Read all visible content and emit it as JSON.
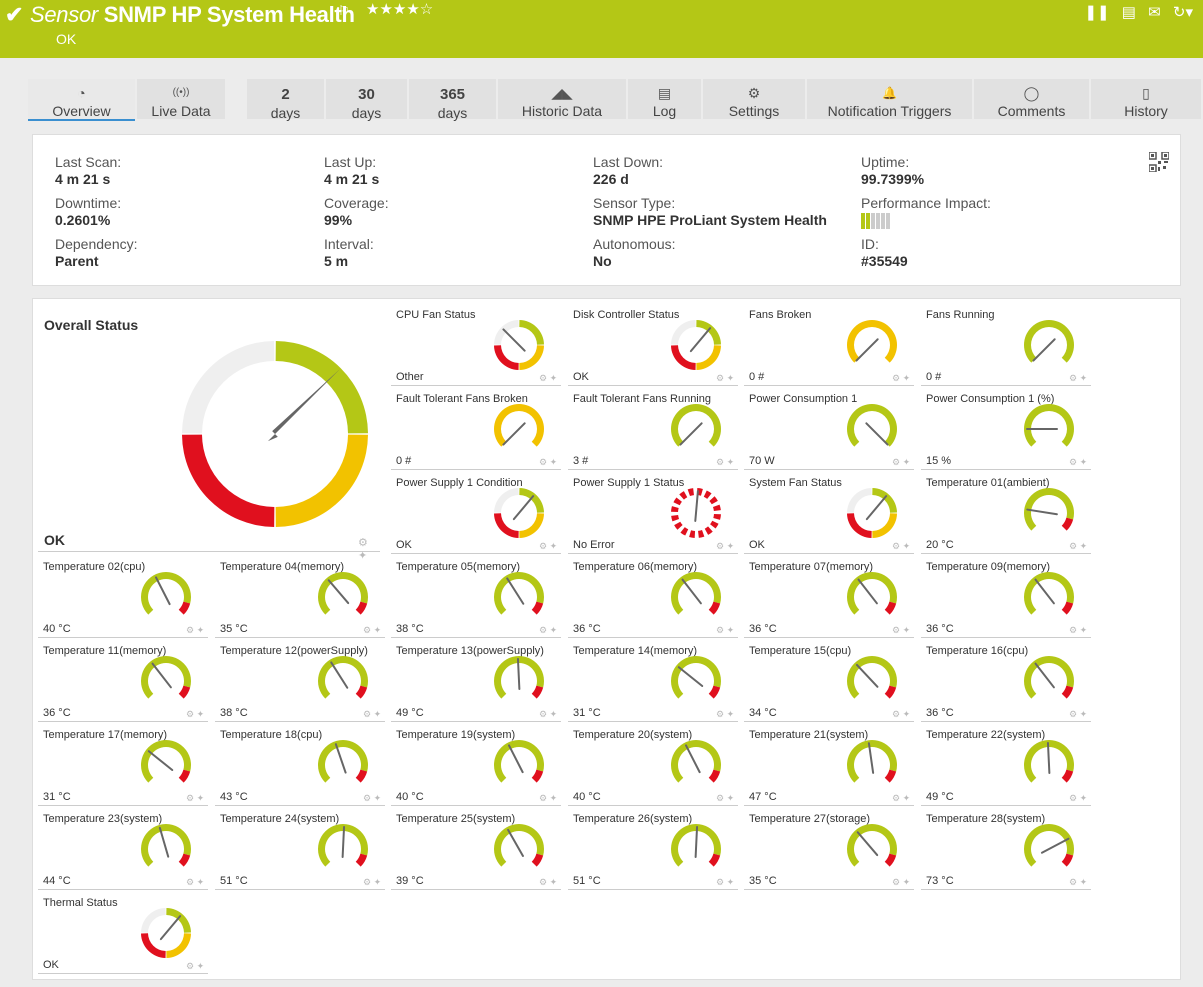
{
  "header": {
    "title_italic": "Sensor",
    "title_bold": "SNMP HP System Health",
    "status": "OK",
    "stars": "★★★★☆",
    "color": "#b4c716"
  },
  "tabs": [
    {
      "icon": "overview-icon",
      "label": "Overview",
      "active": true
    },
    {
      "icon": "live-data-icon",
      "label": "Live Data"
    },
    {
      "num": "2",
      "label": "days"
    },
    {
      "num": "30",
      "label": "days"
    },
    {
      "num": "365",
      "label": "days"
    },
    {
      "icon": "historic-data-icon",
      "label": "Historic Data"
    },
    {
      "icon": "log-icon",
      "label": "Log"
    },
    {
      "icon": "gear-icon",
      "label": "Settings"
    },
    {
      "icon": "bell-icon",
      "label": "Notification Triggers"
    },
    {
      "icon": "comment-icon",
      "label": "Comments"
    },
    {
      "icon": "history-icon",
      "label": "History"
    }
  ],
  "info": {
    "last_scan": {
      "label": "Last Scan:",
      "value": "4 m 21 s"
    },
    "last_up": {
      "label": "Last Up:",
      "value": "4 m 21 s"
    },
    "last_down": {
      "label": "Last Down:",
      "value": "226 d"
    },
    "uptime": {
      "label": "Uptime:",
      "value": "99.7399%"
    },
    "downtime": {
      "label": "Downtime:",
      "value": "0.2601%"
    },
    "coverage": {
      "label": "Coverage:",
      "value": "99%"
    },
    "sensor_type": {
      "label": "Sensor Type:",
      "value": "SNMP HPE ProLiant System Health"
    },
    "performance_impact": {
      "label": "Performance Impact:"
    },
    "dependency": {
      "label": "Dependency:",
      "value": "Parent"
    },
    "interval": {
      "label": "Interval:",
      "value": "5 m"
    },
    "autonomous": {
      "label": "Autonomous:",
      "value": "No"
    },
    "id": {
      "label": "ID:",
      "value": "#35549"
    }
  },
  "overall": {
    "name": "Overall Status",
    "value": "OK"
  },
  "gauges": [
    {
      "name": "CPU Fan Status",
      "value": "Other",
      "kind": "status"
    },
    {
      "name": "Disk Controller Status",
      "value": "OK",
      "kind": "status"
    },
    {
      "name": "Fans Broken",
      "value": "0 #",
      "kind": "yellow"
    },
    {
      "name": "Fans Running",
      "value": "0 #",
      "kind": "green"
    },
    {
      "name": "Fault Tolerant Fans Broken",
      "value": "0 #",
      "kind": "yellow"
    },
    {
      "name": "Fault Tolerant Fans Running",
      "value": "3 #",
      "kind": "green"
    },
    {
      "name": "Power Consumption 1",
      "value": "70 W",
      "kind": "green"
    },
    {
      "name": "Power Consumption 1 (%)",
      "value": "15 %",
      "kind": "green"
    },
    {
      "name": "Power Supply 1 Condition",
      "value": "OK",
      "kind": "status"
    },
    {
      "name": "Power Supply 1 Status",
      "value": "No Error",
      "kind": "dashed"
    },
    {
      "name": "System Fan Status",
      "value": "OK",
      "kind": "status"
    },
    {
      "name": "Temperature 01(ambient)",
      "value": "20 °C",
      "kind": "temp"
    },
    {
      "name": "Temperature 02(cpu)",
      "value": "40 °C",
      "kind": "temp"
    },
    {
      "name": "Temperature 04(memory)",
      "value": "35 °C",
      "kind": "temp"
    },
    {
      "name": "Temperature 05(memory)",
      "value": "38 °C",
      "kind": "temp"
    },
    {
      "name": "Temperature 06(memory)",
      "value": "36 °C",
      "kind": "temp"
    },
    {
      "name": "Temperature 07(memory)",
      "value": "36 °C",
      "kind": "temp"
    },
    {
      "name": "Temperature 09(memory)",
      "value": "36 °C",
      "kind": "temp"
    },
    {
      "name": "Temperature 11(memory)",
      "value": "36 °C",
      "kind": "temp"
    },
    {
      "name": "Temperature 12(powerSupply)",
      "value": "38 °C",
      "kind": "temp"
    },
    {
      "name": "Temperature 13(powerSupply)",
      "value": "49 °C",
      "kind": "temp"
    },
    {
      "name": "Temperature 14(memory)",
      "value": "31 °C",
      "kind": "temp"
    },
    {
      "name": "Temperature 15(cpu)",
      "value": "34 °C",
      "kind": "temp"
    },
    {
      "name": "Temperature 16(cpu)",
      "value": "36 °C",
      "kind": "temp"
    },
    {
      "name": "Temperature 17(memory)",
      "value": "31 °C",
      "kind": "temp"
    },
    {
      "name": "Temperature 18(cpu)",
      "value": "43 °C",
      "kind": "temp"
    },
    {
      "name": "Temperature 19(system)",
      "value": "40 °C",
      "kind": "temp"
    },
    {
      "name": "Temperature 20(system)",
      "value": "40 °C",
      "kind": "temp"
    },
    {
      "name": "Temperature 21(system)",
      "value": "47 °C",
      "kind": "temp"
    },
    {
      "name": "Temperature 22(system)",
      "value": "49 °C",
      "kind": "temp"
    },
    {
      "name": "Temperature 23(system)",
      "value": "44 °C",
      "kind": "temp"
    },
    {
      "name": "Temperature 24(system)",
      "value": "51 °C",
      "kind": "temp"
    },
    {
      "name": "Temperature 25(system)",
      "value": "39 °C",
      "kind": "temp"
    },
    {
      "name": "Temperature 26(system)",
      "value": "51 °C",
      "kind": "temp"
    },
    {
      "name": "Temperature 27(storage)",
      "value": "35 °C",
      "kind": "temp"
    },
    {
      "name": "Temperature 28(system)",
      "value": "73 °C",
      "kind": "temp"
    },
    {
      "name": "Thermal Status",
      "value": "OK",
      "kind": "status"
    }
  ],
  "colors": {
    "green": "#b4c716",
    "yellow": "#f2c200",
    "red": "#e0101e",
    "grey": "#efefef",
    "needle": "#666666"
  }
}
